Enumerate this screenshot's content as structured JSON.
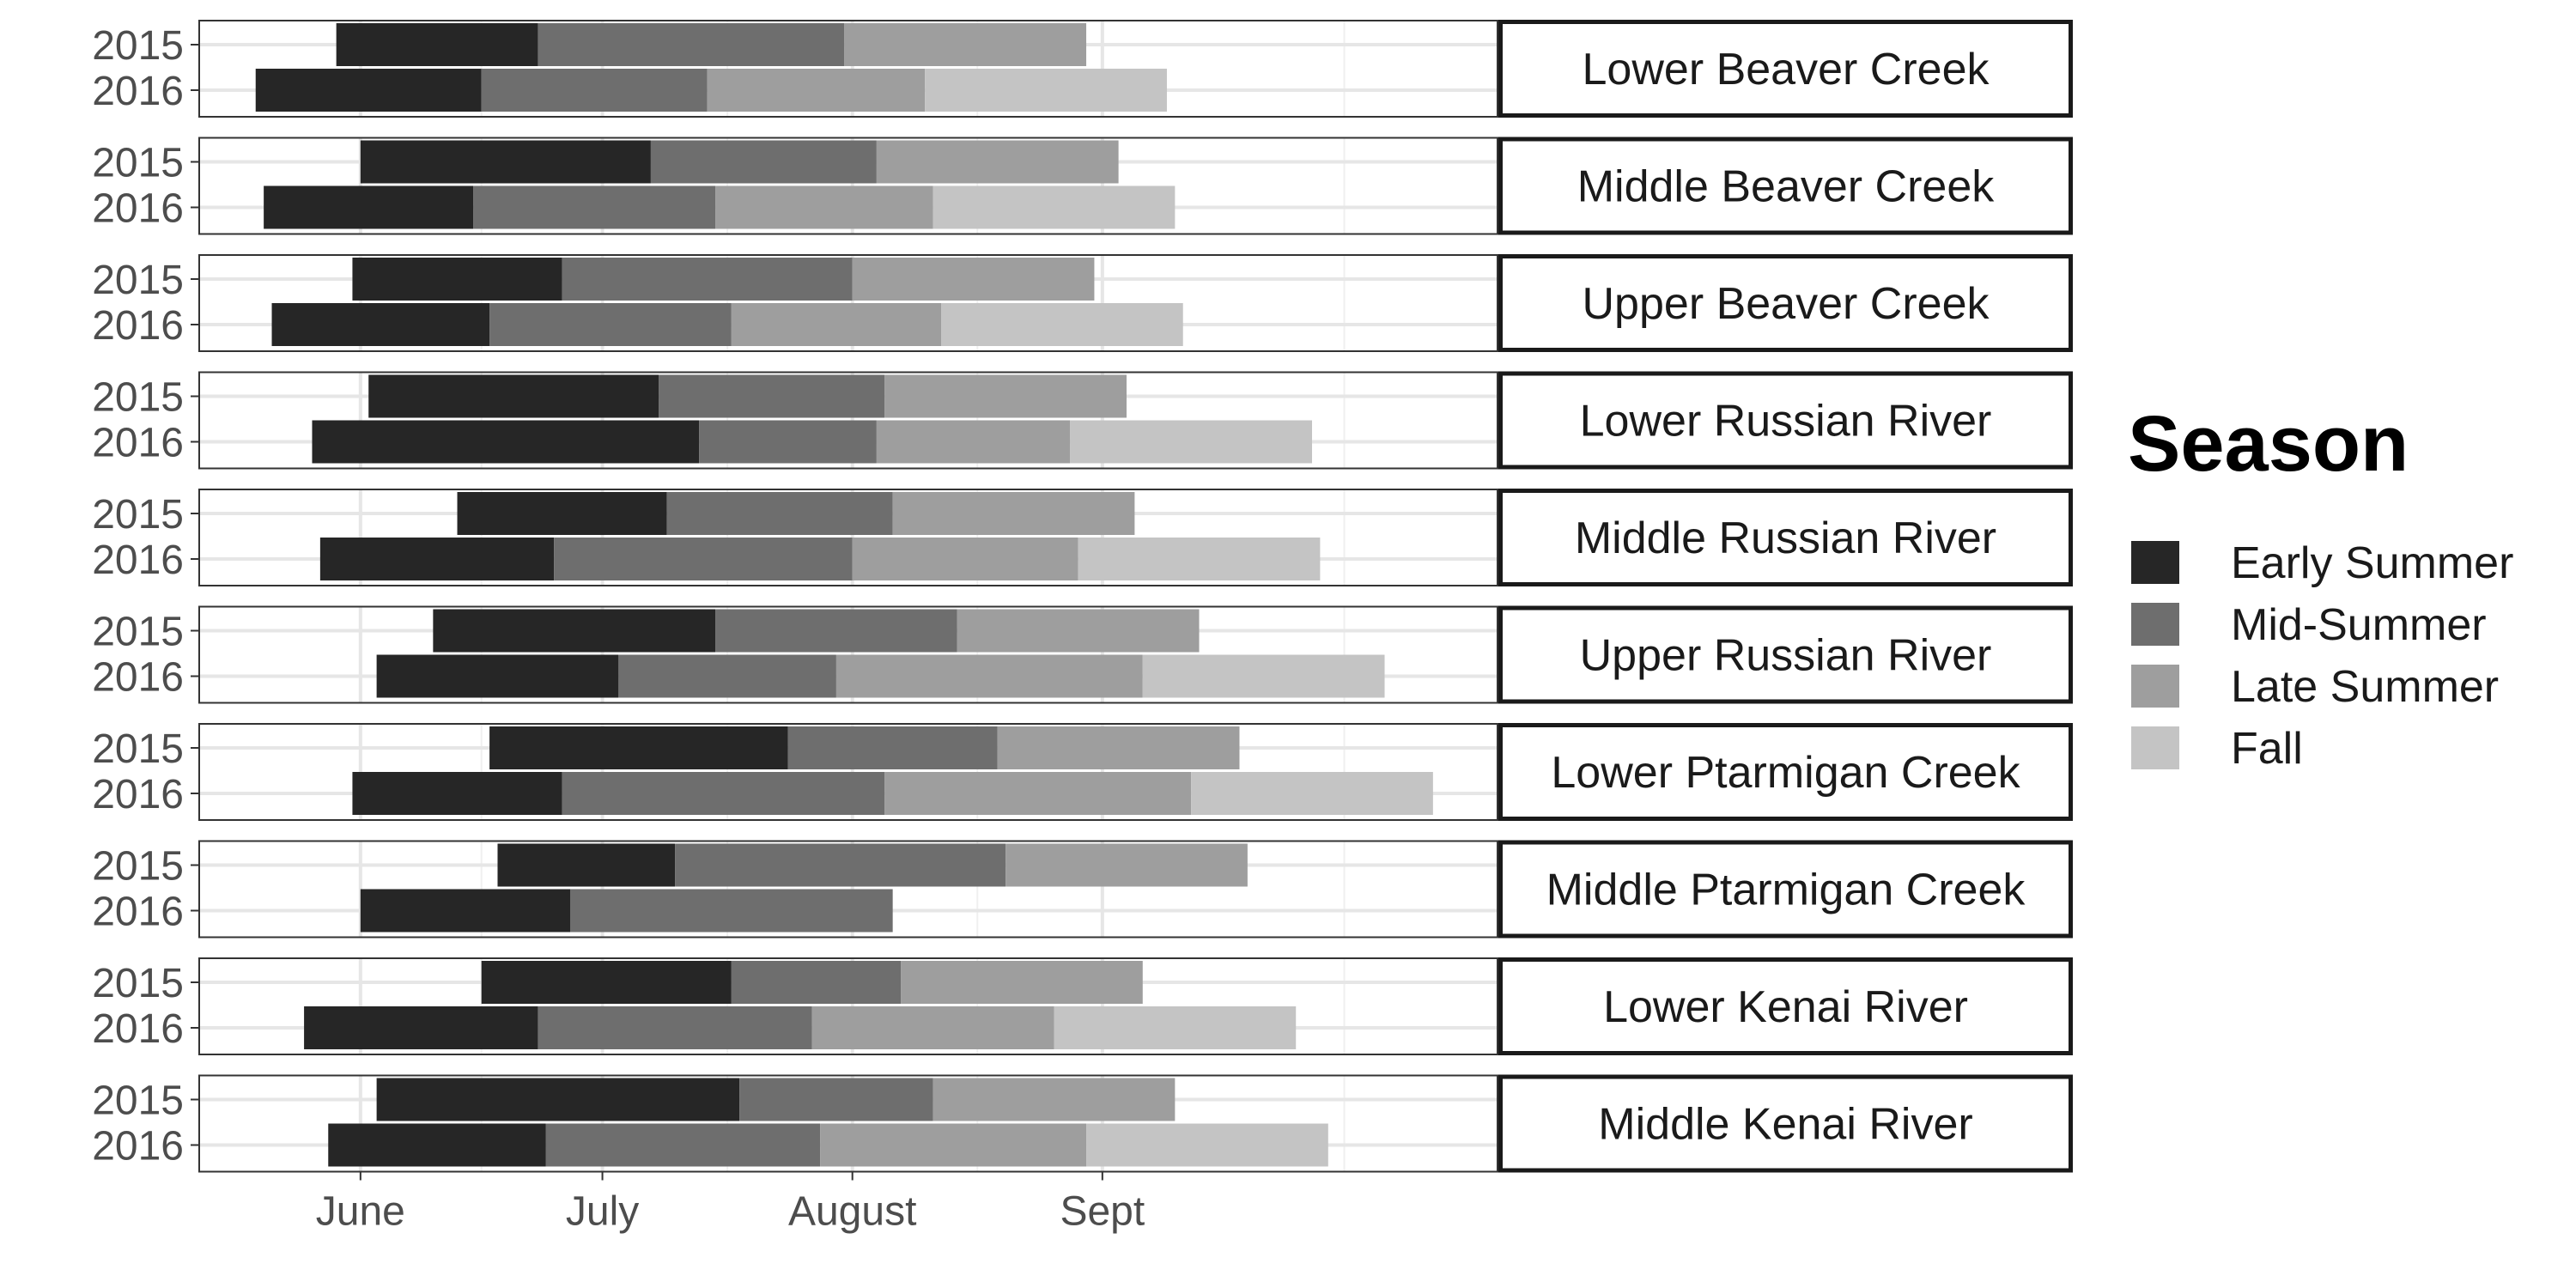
{
  "chart_data": {
    "type": "bar",
    "subtype": "horizontal-stacked-gantt-faceted",
    "x_unit": "day of year",
    "xlim": [
      132,
      293
    ],
    "x_ticks": [
      {
        "label": "June",
        "value": 152
      },
      {
        "label": "July",
        "value": 182
      },
      {
        "label": "August",
        "value": 213
      },
      {
        "label": "Sept",
        "value": 244
      }
    ],
    "minor_gridlines": [
      167,
      197.5,
      228.5,
      274
    ],
    "grid": true,
    "legend_position": "right",
    "legend": {
      "title": "Season",
      "entries": [
        {
          "key": "early",
          "label": "Early Summer",
          "color": "#262626"
        },
        {
          "key": "mid",
          "label": "Mid-Summer",
          "color": "#6e6e6e"
        },
        {
          "key": "late",
          "label": "Late Summer",
          "color": "#9e9e9e"
        },
        {
          "key": "fall",
          "label": "Fall",
          "color": "#c4c4c4"
        }
      ]
    },
    "panels": [
      {
        "label": "Lower Beaver Creek",
        "rows": [
          {
            "year": "2015",
            "segments": [
              {
                "season": "early",
                "start": 149,
                "end": 174
              },
              {
                "season": "mid",
                "start": 174,
                "end": 212
              },
              {
                "season": "late",
                "start": 212,
                "end": 242
              }
            ]
          },
          {
            "year": "2016",
            "segments": [
              {
                "season": "early",
                "start": 139,
                "end": 167
              },
              {
                "season": "mid",
                "start": 167,
                "end": 195
              },
              {
                "season": "late",
                "start": 195,
                "end": 222
              },
              {
                "season": "fall",
                "start": 222,
                "end": 252
              }
            ]
          }
        ]
      },
      {
        "label": "Middle Beaver Creek",
        "rows": [
          {
            "year": "2015",
            "segments": [
              {
                "season": "early",
                "start": 152,
                "end": 188
              },
              {
                "season": "mid",
                "start": 188,
                "end": 216
              },
              {
                "season": "late",
                "start": 216,
                "end": 246
              }
            ]
          },
          {
            "year": "2016",
            "segments": [
              {
                "season": "early",
                "start": 140,
                "end": 166
              },
              {
                "season": "mid",
                "start": 166,
                "end": 196
              },
              {
                "season": "late",
                "start": 196,
                "end": 223
              },
              {
                "season": "fall",
                "start": 223,
                "end": 253
              }
            ]
          }
        ]
      },
      {
        "label": "Upper Beaver Creek",
        "rows": [
          {
            "year": "2015",
            "segments": [
              {
                "season": "early",
                "start": 151,
                "end": 177
              },
              {
                "season": "mid",
                "start": 177,
                "end": 213
              },
              {
                "season": "late",
                "start": 213,
                "end": 243
              }
            ]
          },
          {
            "year": "2016",
            "segments": [
              {
                "season": "early",
                "start": 141,
                "end": 168
              },
              {
                "season": "mid",
                "start": 168,
                "end": 198
              },
              {
                "season": "late",
                "start": 198,
                "end": 224
              },
              {
                "season": "fall",
                "start": 224,
                "end": 254
              }
            ]
          }
        ]
      },
      {
        "label": "Lower Russian River",
        "rows": [
          {
            "year": "2015",
            "segments": [
              {
                "season": "early",
                "start": 153,
                "end": 189
              },
              {
                "season": "mid",
                "start": 189,
                "end": 217
              },
              {
                "season": "late",
                "start": 217,
                "end": 247
              }
            ]
          },
          {
            "year": "2016",
            "segments": [
              {
                "season": "early",
                "start": 146,
                "end": 194
              },
              {
                "season": "mid",
                "start": 194,
                "end": 216
              },
              {
                "season": "late",
                "start": 216,
                "end": 240
              },
              {
                "season": "fall",
                "start": 240,
                "end": 270
              }
            ]
          }
        ]
      },
      {
        "label": "Middle Russian River",
        "rows": [
          {
            "year": "2015",
            "segments": [
              {
                "season": "early",
                "start": 164,
                "end": 190
              },
              {
                "season": "mid",
                "start": 190,
                "end": 218
              },
              {
                "season": "late",
                "start": 218,
                "end": 248
              }
            ]
          },
          {
            "year": "2016",
            "segments": [
              {
                "season": "early",
                "start": 147,
                "end": 176
              },
              {
                "season": "mid",
                "start": 176,
                "end": 213
              },
              {
                "season": "late",
                "start": 213,
                "end": 241
              },
              {
                "season": "fall",
                "start": 241,
                "end": 271
              }
            ]
          }
        ]
      },
      {
        "label": "Upper Russian River",
        "rows": [
          {
            "year": "2015",
            "segments": [
              {
                "season": "early",
                "start": 161,
                "end": 196
              },
              {
                "season": "mid",
                "start": 196,
                "end": 226
              },
              {
                "season": "late",
                "start": 226,
                "end": 256
              }
            ]
          },
          {
            "year": "2016",
            "segments": [
              {
                "season": "early",
                "start": 154,
                "end": 184
              },
              {
                "season": "mid",
                "start": 184,
                "end": 211
              },
              {
                "season": "late",
                "start": 211,
                "end": 249
              },
              {
                "season": "fall",
                "start": 249,
                "end": 279
              }
            ]
          }
        ]
      },
      {
        "label": "Lower Ptarmigan Creek",
        "rows": [
          {
            "year": "2015",
            "segments": [
              {
                "season": "early",
                "start": 168,
                "end": 205
              },
              {
                "season": "mid",
                "start": 205,
                "end": 231
              },
              {
                "season": "late",
                "start": 231,
                "end": 261
              }
            ]
          },
          {
            "year": "2016",
            "segments": [
              {
                "season": "early",
                "start": 151,
                "end": 177
              },
              {
                "season": "mid",
                "start": 177,
                "end": 217
              },
              {
                "season": "late",
                "start": 217,
                "end": 255
              },
              {
                "season": "fall",
                "start": 255,
                "end": 285
              }
            ]
          }
        ]
      },
      {
        "label": "Middle Ptarmigan Creek",
        "rows": [
          {
            "year": "2015",
            "segments": [
              {
                "season": "early",
                "start": 169,
                "end": 191
              },
              {
                "season": "mid",
                "start": 191,
                "end": 232
              },
              {
                "season": "late",
                "start": 232,
                "end": 262
              }
            ]
          },
          {
            "year": "2016",
            "segments": [
              {
                "season": "early",
                "start": 152,
                "end": 178
              },
              {
                "season": "mid",
                "start": 178,
                "end": 218
              }
            ]
          }
        ]
      },
      {
        "label": "Lower Kenai River",
        "rows": [
          {
            "year": "2015",
            "segments": [
              {
                "season": "early",
                "start": 167,
                "end": 198
              },
              {
                "season": "mid",
                "start": 198,
                "end": 219
              },
              {
                "season": "late",
                "start": 219,
                "end": 249
              }
            ]
          },
          {
            "year": "2016",
            "segments": [
              {
                "season": "early",
                "start": 145,
                "end": 174
              },
              {
                "season": "mid",
                "start": 174,
                "end": 208
              },
              {
                "season": "late",
                "start": 208,
                "end": 238
              },
              {
                "season": "fall",
                "start": 238,
                "end": 268
              }
            ]
          }
        ]
      },
      {
        "label": "Middle Kenai River",
        "rows": [
          {
            "year": "2015",
            "segments": [
              {
                "season": "early",
                "start": 154,
                "end": 199
              },
              {
                "season": "mid",
                "start": 199,
                "end": 223
              },
              {
                "season": "late",
                "start": 223,
                "end": 253
              }
            ]
          },
          {
            "year": "2016",
            "segments": [
              {
                "season": "early",
                "start": 148,
                "end": 175
              },
              {
                "season": "mid",
                "start": 175,
                "end": 209
              },
              {
                "season": "late",
                "start": 209,
                "end": 242
              },
              {
                "season": "fall",
                "start": 242,
                "end": 272
              }
            ]
          }
        ]
      }
    ]
  }
}
